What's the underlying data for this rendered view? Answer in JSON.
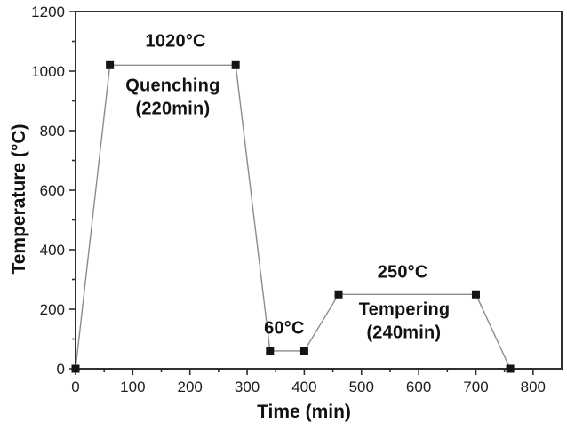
{
  "chart_data": {
    "type": "line",
    "title": "",
    "xlabel": "Time (min)",
    "ylabel": "Temperature (°C)",
    "xlim": [
      0,
      850
    ],
    "ylim": [
      0,
      1200
    ],
    "x_major_ticks": [
      0,
      100,
      200,
      300,
      400,
      500,
      600,
      700,
      800
    ],
    "x_minor_ticks": [
      50,
      150,
      250,
      350,
      450,
      550,
      650,
      750
    ],
    "y_major_ticks": [
      0,
      200,
      400,
      600,
      800,
      1000,
      1200
    ],
    "y_minor_ticks": [
      100,
      300,
      500,
      700,
      900,
      1100
    ],
    "grid": false,
    "legend": "none",
    "series": [
      {
        "name": "heat-treatment-temperature-profile",
        "marker": "square",
        "points": [
          [
            0,
            0
          ],
          [
            60,
            1020
          ],
          [
            280,
            1020
          ],
          [
            340,
            60
          ],
          [
            400,
            60
          ],
          [
            460,
            250
          ],
          [
            700,
            250
          ],
          [
            760,
            0
          ]
        ]
      }
    ],
    "annotations": [
      {
        "id": "quench-temp-label",
        "text": "1020°C",
        "x": 175,
        "y": 1100
      },
      {
        "id": "quench-stage-label",
        "text": "Quenching",
        "x": 170,
        "y": 950
      },
      {
        "id": "quench-duration-label",
        "text": "(220min)",
        "x": 170,
        "y": 872
      },
      {
        "id": "cool-temp-label",
        "text": "60°C",
        "x": 365,
        "y": 135
      },
      {
        "id": "temper-temp-label",
        "text": "250°C",
        "x": 572,
        "y": 322
      },
      {
        "id": "temper-stage-label",
        "text": "Tempering",
        "x": 575,
        "y": 196
      },
      {
        "id": "temper-duration-label",
        "text": "(240min)",
        "x": 574,
        "y": 120
      }
    ],
    "colors": {
      "line": "#8c8c8c",
      "marker": "#141414",
      "axis": "#2f2f2f",
      "text": "#111111",
      "background": "#ffffff"
    }
  }
}
